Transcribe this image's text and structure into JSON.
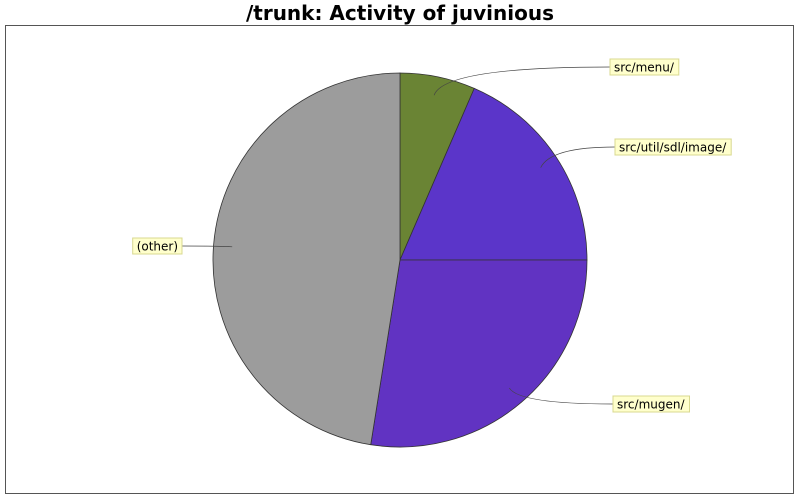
{
  "chart_data": {
    "type": "pie",
    "title": "/trunk: Activity of juvinious",
    "slices": [
      {
        "label": "src/menu/",
        "value": 6.5,
        "color": "#6a8434"
      },
      {
        "label": "src/util/sdl/image/",
        "value": 18.5,
        "color": "#5b35c9"
      },
      {
        "label": "src/mugen/",
        "value": 27.5,
        "color": "#6133c2"
      },
      {
        "label": "(other)",
        "value": 47.5,
        "color": "#9c9c9c"
      }
    ],
    "start_angle_deg": 90,
    "direction": "clockwise",
    "label_style": {
      "background": "#ffffcc",
      "border": "#d8d890"
    }
  }
}
